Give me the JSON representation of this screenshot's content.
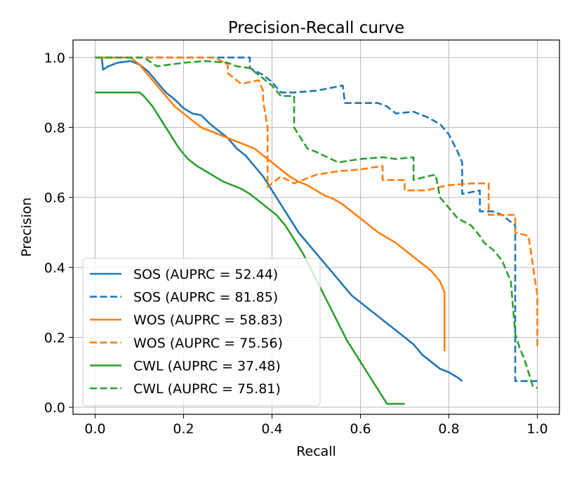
{
  "chart_data": {
    "type": "line",
    "title": "Precision-Recall curve",
    "xlabel": "Recall",
    "ylabel": "Precision",
    "xlim": [
      -0.05,
      1.05
    ],
    "ylim": [
      -0.02,
      1.05
    ],
    "xticks": [
      0.0,
      0.2,
      0.4,
      0.6,
      0.8,
      1.0
    ],
    "xtick_labels": [
      "0.0",
      "0.2",
      "0.4",
      "0.6",
      "0.8",
      "1.0"
    ],
    "yticks": [
      0.0,
      0.2,
      0.4,
      0.6,
      0.8,
      1.0
    ],
    "ytick_labels": [
      "0.0",
      "0.2",
      "0.4",
      "0.6",
      "0.8",
      "1.0"
    ],
    "grid": true,
    "legend_position": "lower-left",
    "series": [
      {
        "name": "SOS (AUPRC = 52.44)",
        "color": "#1f77b4",
        "dash": "solid",
        "x": [
          0.0,
          0.015,
          0.018,
          0.03,
          0.05,
          0.08,
          0.1,
          0.12,
          0.14,
          0.16,
          0.18,
          0.2,
          0.22,
          0.24,
          0.26,
          0.28,
          0.3,
          0.32,
          0.34,
          0.36,
          0.38,
          0.4,
          0.42,
          0.44,
          0.46,
          0.48,
          0.5,
          0.52,
          0.54,
          0.56,
          0.58,
          0.6,
          0.62,
          0.64,
          0.66,
          0.68,
          0.7,
          0.72,
          0.74,
          0.76,
          0.78,
          0.8,
          0.82,
          0.83
        ],
        "y": [
          1.0,
          1.0,
          0.965,
          0.975,
          0.985,
          0.99,
          0.98,
          0.96,
          0.93,
          0.9,
          0.88,
          0.855,
          0.84,
          0.835,
          0.81,
          0.79,
          0.77,
          0.74,
          0.72,
          0.69,
          0.66,
          0.62,
          0.58,
          0.54,
          0.5,
          0.47,
          0.44,
          0.41,
          0.38,
          0.35,
          0.32,
          0.3,
          0.28,
          0.26,
          0.24,
          0.22,
          0.2,
          0.18,
          0.15,
          0.13,
          0.11,
          0.1,
          0.085,
          0.075
        ]
      },
      {
        "name": "SOS (AUPRC = 81.85)",
        "color": "#1f77b4",
        "dash": "dashed",
        "x": [
          0.0,
          0.35,
          0.35,
          0.38,
          0.4,
          0.42,
          0.45,
          0.5,
          0.56,
          0.565,
          0.6,
          0.64,
          0.66,
          0.68,
          0.72,
          0.75,
          0.78,
          0.8,
          0.82,
          0.83,
          0.83,
          0.87,
          0.87,
          0.9,
          0.92,
          0.95,
          0.95,
          1.0
        ],
        "y": [
          1.0,
          1.0,
          0.97,
          0.95,
          0.93,
          0.9,
          0.9,
          0.905,
          0.92,
          0.87,
          0.87,
          0.87,
          0.86,
          0.84,
          0.845,
          0.83,
          0.81,
          0.78,
          0.73,
          0.7,
          0.61,
          0.62,
          0.56,
          0.56,
          0.55,
          0.52,
          0.075,
          0.075
        ]
      },
      {
        "name": "WOS (AUPRC = 58.83)",
        "color": "#ff7f0e",
        "dash": "solid",
        "x": [
          0.0,
          0.05,
          0.08,
          0.1,
          0.12,
          0.14,
          0.16,
          0.18,
          0.2,
          0.22,
          0.24,
          0.26,
          0.28,
          0.3,
          0.32,
          0.34,
          0.36,
          0.38,
          0.4,
          0.42,
          0.44,
          0.46,
          0.48,
          0.5,
          0.52,
          0.54,
          0.56,
          0.58,
          0.6,
          0.62,
          0.64,
          0.66,
          0.68,
          0.7,
          0.72,
          0.74,
          0.76,
          0.78,
          0.79,
          0.79
        ],
        "y": [
          1.0,
          1.0,
          1.0,
          0.98,
          0.95,
          0.92,
          0.89,
          0.86,
          0.84,
          0.82,
          0.8,
          0.79,
          0.78,
          0.77,
          0.76,
          0.75,
          0.74,
          0.72,
          0.7,
          0.68,
          0.66,
          0.645,
          0.635,
          0.62,
          0.605,
          0.595,
          0.58,
          0.56,
          0.54,
          0.52,
          0.5,
          0.485,
          0.47,
          0.45,
          0.43,
          0.41,
          0.39,
          0.36,
          0.33,
          0.16
        ]
      },
      {
        "name": "WOS (AUPRC = 75.56)",
        "color": "#ff7f0e",
        "dash": "dashed",
        "x": [
          0.0,
          0.27,
          0.3,
          0.3,
          0.33,
          0.35,
          0.37,
          0.38,
          0.38,
          0.39,
          0.39,
          0.42,
          0.45,
          0.48,
          0.5,
          0.55,
          0.6,
          0.65,
          0.65,
          0.7,
          0.7,
          0.75,
          0.78,
          0.8,
          0.85,
          0.89,
          0.89,
          0.95,
          0.95,
          0.98,
          1.0,
          1.0
        ],
        "y": [
          1.0,
          1.0,
          0.98,
          0.955,
          0.925,
          0.93,
          0.935,
          0.905,
          0.875,
          0.8,
          0.63,
          0.66,
          0.64,
          0.655,
          0.665,
          0.675,
          0.68,
          0.69,
          0.65,
          0.65,
          0.62,
          0.62,
          0.63,
          0.635,
          0.64,
          0.64,
          0.55,
          0.55,
          0.5,
          0.49,
          0.32,
          0.17
        ]
      },
      {
        "name": "CWL (AUPRC = 37.48)",
        "color": "#2ca02c",
        "dash": "solid",
        "x": [
          0.0,
          0.05,
          0.1,
          0.11,
          0.13,
          0.15,
          0.17,
          0.19,
          0.21,
          0.23,
          0.25,
          0.27,
          0.29,
          0.31,
          0.33,
          0.35,
          0.37,
          0.39,
          0.41,
          0.43,
          0.45,
          0.47,
          0.49,
          0.51,
          0.53,
          0.55,
          0.57,
          0.59,
          0.61,
          0.63,
          0.65,
          0.66,
          0.7
        ],
        "y": [
          0.9,
          0.9,
          0.9,
          0.89,
          0.86,
          0.82,
          0.78,
          0.74,
          0.71,
          0.69,
          0.675,
          0.66,
          0.645,
          0.635,
          0.625,
          0.61,
          0.59,
          0.57,
          0.55,
          0.52,
          0.48,
          0.44,
          0.39,
          0.34,
          0.29,
          0.24,
          0.19,
          0.15,
          0.11,
          0.07,
          0.03,
          0.01,
          0.01
        ]
      },
      {
        "name": "CWL (AUPRC = 75.81)",
        "color": "#2ca02c",
        "dash": "dashed",
        "x": [
          0.0,
          0.11,
          0.14,
          0.2,
          0.25,
          0.3,
          0.32,
          0.35,
          0.38,
          0.4,
          0.42,
          0.45,
          0.45,
          0.48,
          0.5,
          0.55,
          0.6,
          0.65,
          0.68,
          0.72,
          0.72,
          0.75,
          0.77,
          0.78,
          0.8,
          0.82,
          0.85,
          0.87,
          0.88,
          0.9,
          0.92,
          0.93,
          0.94,
          0.95,
          0.96,
          0.97,
          0.98,
          0.99,
          1.0
        ],
        "y": [
          1.0,
          1.0,
          0.975,
          0.985,
          0.99,
          0.985,
          0.975,
          0.97,
          0.94,
          0.92,
          0.89,
          0.89,
          0.8,
          0.74,
          0.73,
          0.7,
          0.71,
          0.715,
          0.71,
          0.715,
          0.65,
          0.66,
          0.665,
          0.6,
          0.57,
          0.54,
          0.52,
          0.49,
          0.47,
          0.45,
          0.42,
          0.39,
          0.36,
          0.21,
          0.17,
          0.14,
          0.1,
          0.06,
          0.055
        ]
      }
    ]
  }
}
